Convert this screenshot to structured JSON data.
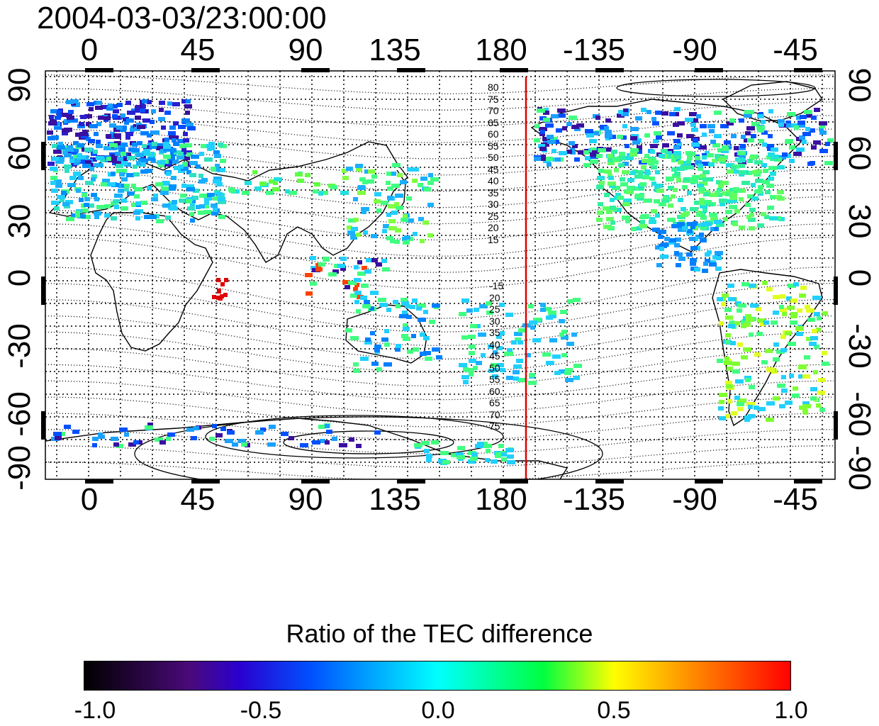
{
  "title": "2004-03-03/23:00:00",
  "top_ticks": [
    "0",
    "45",
    "90",
    "135",
    "180",
    "-135",
    "-90",
    "-45"
  ],
  "bottom_ticks": [
    "0",
    "45",
    "90",
    "135",
    "180",
    "-135",
    "-90",
    "-45"
  ],
  "left_ticks": [
    "90",
    "60",
    "30",
    "0",
    "-30",
    "-60",
    "-90"
  ],
  "right_ticks": [
    "90",
    "60",
    "30",
    "0",
    "-30",
    "-60",
    "-90"
  ],
  "contour_labels_north": [
    "80",
    "75",
    "70",
    "65",
    "60",
    "55",
    "50",
    "45",
    "40",
    "35",
    "30",
    "25",
    "20",
    "15"
  ],
  "contour_labels_south": [
    "-15",
    "20",
    "25",
    "30",
    "35",
    "40",
    "45",
    "50",
    "55",
    "60",
    "65",
    "70",
    "75"
  ],
  "colorbar": {
    "title": "Ratio of the TEC difference",
    "labels": [
      "-1.0",
      "-0.5",
      "0.0",
      "0.5",
      "1.0"
    ]
  },
  "colors": {
    "marker_line": "#e00000"
  }
}
